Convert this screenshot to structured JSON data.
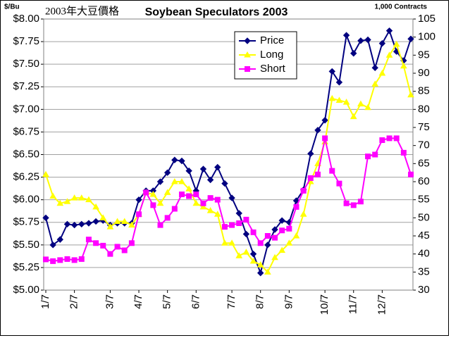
{
  "chart_data": {
    "type": "line",
    "title": "Soybean Speculators 2003",
    "subtitle": "2003年大豆價格",
    "ylabel": "$/Bu",
    "y2label": "1,000 Contracts",
    "categories": [
      "1/7",
      null,
      null,
      null,
      "2/7",
      null,
      null,
      null,
      null,
      "3/7",
      null,
      null,
      null,
      "4/7",
      null,
      null,
      null,
      "5/7",
      null,
      null,
      null,
      "6/7",
      null,
      null,
      null,
      null,
      "7/7",
      null,
      null,
      null,
      "8/7",
      null,
      null,
      null,
      "9/7",
      null,
      null,
      null,
      null,
      "10/7",
      null,
      null,
      null,
      "11/7",
      null,
      null,
      null,
      "12/7",
      null,
      null,
      null,
      null
    ],
    "series": [
      {
        "name": "Price",
        "color": "#000080",
        "marker": "diamond",
        "values": [
          5.8,
          5.5,
          5.56,
          5.73,
          5.72,
          5.73,
          5.74,
          5.76,
          5.77,
          5.72,
          5.74,
          5.74,
          5.74,
          6.0,
          6.1,
          6.1,
          6.2,
          6.3,
          6.44,
          6.43,
          6.32,
          6.1,
          6.34,
          6.22,
          6.36,
          6.18,
          6.02,
          5.85,
          5.62,
          5.4,
          5.19,
          5.5,
          5.67,
          5.77,
          5.75,
          5.99,
          6.11,
          6.51,
          6.77,
          6.88,
          7.42,
          7.3,
          7.82,
          7.62,
          7.76,
          7.77,
          7.46,
          7.73,
          7.87,
          7.64,
          7.54,
          7.78
        ]
      },
      {
        "name": "Long",
        "color": "#ffff00",
        "marker": "triangle",
        "axis": "y2",
        "values": [
          62,
          56,
          54,
          54.5,
          55.5,
          55.5,
          55,
          53,
          50,
          47.5,
          49,
          49,
          48,
          51,
          57,
          56.5,
          54,
          57,
          60,
          60,
          58,
          54,
          53,
          52,
          51,
          43,
          43,
          39.5,
          40.5,
          38,
          37,
          35,
          39,
          41,
          43,
          45,
          51,
          60,
          65,
          71,
          83,
          82.5,
          82,
          78,
          81.5,
          80.5,
          87,
          90,
          95,
          98,
          92,
          84
        ]
      },
      {
        "name": "Short",
        "color": "#ff00ff",
        "marker": "square",
        "axis": "y2",
        "values": [
          38.5,
          38,
          38.3,
          38.6,
          38.3,
          38.6,
          44,
          43,
          42.3,
          40,
          42,
          41,
          43,
          51,
          57,
          53.5,
          48,
          50,
          52.5,
          56.5,
          56,
          56.5,
          54,
          55.5,
          55,
          47.5,
          48,
          48.5,
          49.5,
          46,
          43,
          45,
          44.5,
          46.5,
          47,
          53,
          57.5,
          61,
          62,
          72,
          63,
          59.5,
          54,
          53.5,
          54.5,
          67,
          67.5,
          71.5,
          72,
          72,
          68,
          62
        ]
      }
    ],
    "ylim": [
      5.0,
      8.0
    ],
    "yticks": [
      {
        "value": 5.0,
        "label": "$5.00"
      },
      {
        "value": 5.25,
        "label": "$5.25"
      },
      {
        "value": 5.5,
        "label": "$5.50"
      },
      {
        "value": 5.75,
        "label": "$5.75"
      },
      {
        "value": 6.0,
        "label": "$6.00"
      },
      {
        "value": 6.25,
        "label": "$6.25"
      },
      {
        "value": 6.5,
        "label": "$6.50"
      },
      {
        "value": 6.75,
        "label": "$6.75"
      },
      {
        "value": 7.0,
        "label": "$7.00"
      },
      {
        "value": 7.25,
        "label": "$7.25"
      },
      {
        "value": 7.5,
        "label": "$7.50"
      },
      {
        "value": 7.75,
        "label": "$7.75"
      },
      {
        "value": 8.0,
        "label": "$8.00"
      }
    ],
    "y2lim": [
      30,
      105
    ],
    "y2ticks": [
      30,
      35,
      40,
      45,
      50,
      55,
      60,
      65,
      70,
      75,
      80,
      85,
      90,
      95,
      100,
      105
    ],
    "grid": true,
    "legend": "upper center"
  }
}
